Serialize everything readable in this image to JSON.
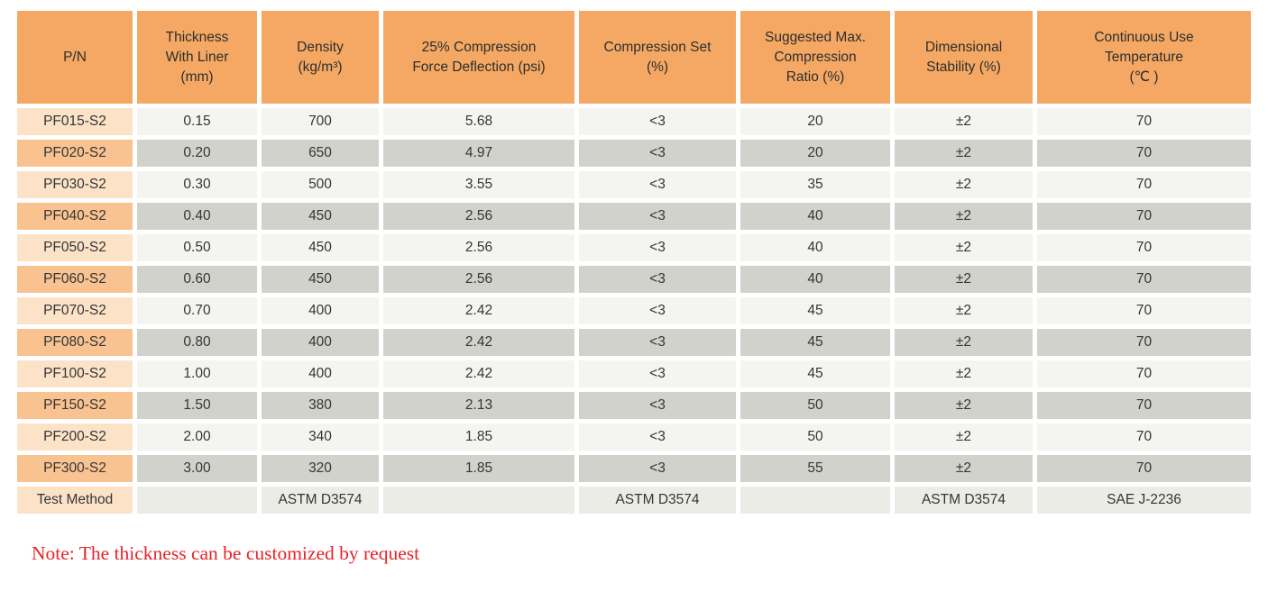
{
  "table": {
    "columns": [
      "P/N",
      "Thickness\nWith Liner\n(mm)",
      "Density\n(kg/m³)",
      "25% Compression\nForce Deflection (psi)",
      "Compression Set\n(%)",
      "Suggested Max.\nCompression\nRatio (%)",
      "Dimensional\nStability (%)",
      "Continuous Use\nTemperature\n(℃ )"
    ],
    "rows": [
      [
        "PF015-S2",
        "0.15",
        "700",
        "5.68",
        "<3",
        "20",
        "±2",
        "70"
      ],
      [
        "PF020-S2",
        "0.20",
        "650",
        "4.97",
        "<3",
        "20",
        "±2",
        "70"
      ],
      [
        "PF030-S2",
        "0.30",
        "500",
        "3.55",
        "<3",
        "35",
        "±2",
        "70"
      ],
      [
        "PF040-S2",
        "0.40",
        "450",
        "2.56",
        "<3",
        "40",
        "±2",
        "70"
      ],
      [
        "PF050-S2",
        "0.50",
        "450",
        "2.56",
        "<3",
        "40",
        "±2",
        "70"
      ],
      [
        "PF060-S2",
        "0.60",
        "450",
        "2.56",
        "<3",
        "40",
        "±2",
        "70"
      ],
      [
        "PF070-S2",
        "0.70",
        "400",
        "2.42",
        "<3",
        "45",
        "±2",
        "70"
      ],
      [
        "PF080-S2",
        "0.80",
        "400",
        "2.42",
        "<3",
        "45",
        "±2",
        "70"
      ],
      [
        "PF100-S2",
        "1.00",
        "400",
        "2.42",
        "<3",
        "45",
        "±2",
        "70"
      ],
      [
        "PF150-S2",
        "1.50",
        "380",
        "2.13",
        "<3",
        "50",
        "±2",
        "70"
      ],
      [
        "PF200-S2",
        "2.00",
        "340",
        "1.85",
        "<3",
        "50",
        "±2",
        "70"
      ],
      [
        "PF300-S2",
        "3.00",
        "320",
        "1.85",
        "<3",
        "55",
        "±2",
        "70"
      ]
    ],
    "footer": [
      "Test Method",
      "",
      "ASTM D3574",
      "",
      "ASTM D3574",
      "",
      "ASTM D3574",
      "SAE J-2236"
    ]
  },
  "note": "Note: The thickness can be customized by request",
  "colors": {
    "header_bg": "#F4A863",
    "pn_odd_bg": "#FCE3C8",
    "pn_even_bg": "#F8C390",
    "cell_odd_bg": "#F4F4F1",
    "cell_even_bg": "#D2D2CD",
    "footer_cell_bg": "#ECECE7",
    "note_red": "#E62328"
  }
}
